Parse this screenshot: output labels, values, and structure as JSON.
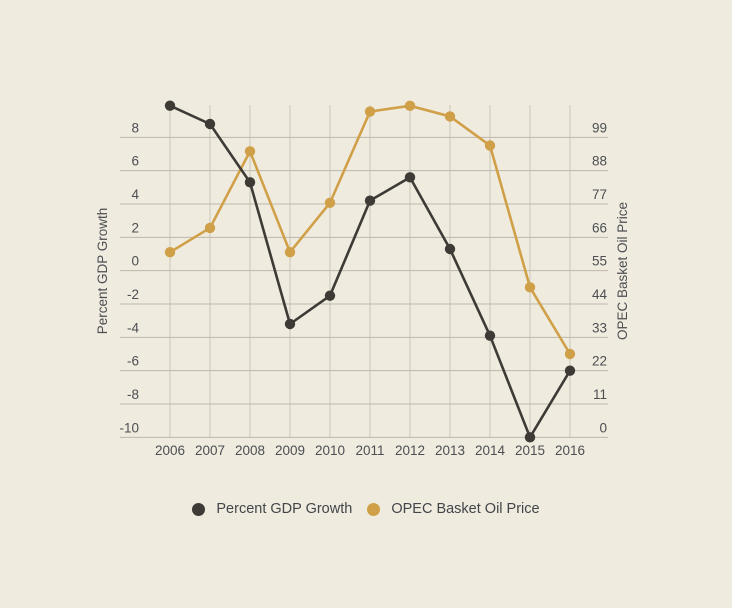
{
  "chart_data": {
    "type": "line",
    "x": [
      2006,
      2007,
      2008,
      2009,
      2010,
      2011,
      2012,
      2013,
      2014,
      2015,
      2016
    ],
    "series": [
      {
        "id": "gdp",
        "name": "Percent GDP Growth",
        "axis": "left",
        "color": "#3e3a36",
        "values": [
          9.9,
          8.8,
          5.3,
          -3.2,
          -1.5,
          4.2,
          5.6,
          1.3,
          -3.9,
          -10,
          -6
        ]
      },
      {
        "id": "oil",
        "name": "OPEC Basket Oil Price",
        "axis": "right",
        "color": "#d0a048",
        "values": [
          61.1,
          69.1,
          94.4,
          61.1,
          77.4,
          107.5,
          109.4,
          105.9,
          96.3,
          49.5,
          27.5
        ]
      }
    ],
    "left_axis": {
      "label": "Percent GDP Growth",
      "ticks": [
        8,
        6,
        4,
        2,
        0,
        -2,
        -4,
        -6,
        -8,
        -10
      ],
      "range": [
        -10,
        10
      ]
    },
    "right_axis": {
      "label": "OPEC Basket Oil Price",
      "ticks": [
        99,
        88,
        77,
        66,
        55,
        44,
        33,
        22,
        11,
        0
      ],
      "range": [
        0,
        110
      ]
    },
    "grid": true,
    "legend_position": "bottom"
  },
  "colors": {
    "background": "#f0ebdf",
    "grid_vertical": "#c9c5b8",
    "grid_horizontal": "#bcb8ab",
    "tick_text": "#4c4e52",
    "axis_title_text": "#4c4e52",
    "legend_text": "#424549"
  }
}
